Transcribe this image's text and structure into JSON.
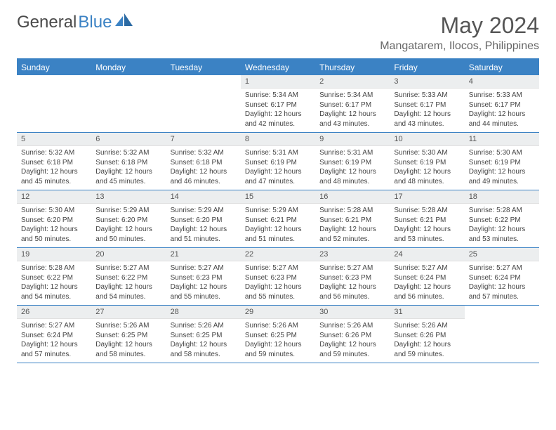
{
  "logo": {
    "text1": "General",
    "text2": "Blue"
  },
  "title": "May 2024",
  "location": "Mangatarem, Ilocos, Philippines",
  "dayNames": [
    "Sunday",
    "Monday",
    "Tuesday",
    "Wednesday",
    "Thursday",
    "Friday",
    "Saturday"
  ],
  "colors": {
    "headerBlue": "#3b82c4",
    "cellHeader": "#eceeef",
    "textGray": "#555"
  },
  "weeks": [
    [
      {
        "n": "",
        "lines": []
      },
      {
        "n": "",
        "lines": []
      },
      {
        "n": "",
        "lines": []
      },
      {
        "n": "1",
        "lines": [
          "Sunrise: 5:34 AM",
          "Sunset: 6:17 PM",
          "Daylight: 12 hours",
          "and 42 minutes."
        ]
      },
      {
        "n": "2",
        "lines": [
          "Sunrise: 5:34 AM",
          "Sunset: 6:17 PM",
          "Daylight: 12 hours",
          "and 43 minutes."
        ]
      },
      {
        "n": "3",
        "lines": [
          "Sunrise: 5:33 AM",
          "Sunset: 6:17 PM",
          "Daylight: 12 hours",
          "and 43 minutes."
        ]
      },
      {
        "n": "4",
        "lines": [
          "Sunrise: 5:33 AM",
          "Sunset: 6:17 PM",
          "Daylight: 12 hours",
          "and 44 minutes."
        ]
      }
    ],
    [
      {
        "n": "5",
        "lines": [
          "Sunrise: 5:32 AM",
          "Sunset: 6:18 PM",
          "Daylight: 12 hours",
          "and 45 minutes."
        ]
      },
      {
        "n": "6",
        "lines": [
          "Sunrise: 5:32 AM",
          "Sunset: 6:18 PM",
          "Daylight: 12 hours",
          "and 45 minutes."
        ]
      },
      {
        "n": "7",
        "lines": [
          "Sunrise: 5:32 AM",
          "Sunset: 6:18 PM",
          "Daylight: 12 hours",
          "and 46 minutes."
        ]
      },
      {
        "n": "8",
        "lines": [
          "Sunrise: 5:31 AM",
          "Sunset: 6:19 PM",
          "Daylight: 12 hours",
          "and 47 minutes."
        ]
      },
      {
        "n": "9",
        "lines": [
          "Sunrise: 5:31 AM",
          "Sunset: 6:19 PM",
          "Daylight: 12 hours",
          "and 48 minutes."
        ]
      },
      {
        "n": "10",
        "lines": [
          "Sunrise: 5:30 AM",
          "Sunset: 6:19 PM",
          "Daylight: 12 hours",
          "and 48 minutes."
        ]
      },
      {
        "n": "11",
        "lines": [
          "Sunrise: 5:30 AM",
          "Sunset: 6:19 PM",
          "Daylight: 12 hours",
          "and 49 minutes."
        ]
      }
    ],
    [
      {
        "n": "12",
        "lines": [
          "Sunrise: 5:30 AM",
          "Sunset: 6:20 PM",
          "Daylight: 12 hours",
          "and 50 minutes."
        ]
      },
      {
        "n": "13",
        "lines": [
          "Sunrise: 5:29 AM",
          "Sunset: 6:20 PM",
          "Daylight: 12 hours",
          "and 50 minutes."
        ]
      },
      {
        "n": "14",
        "lines": [
          "Sunrise: 5:29 AM",
          "Sunset: 6:20 PM",
          "Daylight: 12 hours",
          "and 51 minutes."
        ]
      },
      {
        "n": "15",
        "lines": [
          "Sunrise: 5:29 AM",
          "Sunset: 6:21 PM",
          "Daylight: 12 hours",
          "and 51 minutes."
        ]
      },
      {
        "n": "16",
        "lines": [
          "Sunrise: 5:28 AM",
          "Sunset: 6:21 PM",
          "Daylight: 12 hours",
          "and 52 minutes."
        ]
      },
      {
        "n": "17",
        "lines": [
          "Sunrise: 5:28 AM",
          "Sunset: 6:21 PM",
          "Daylight: 12 hours",
          "and 53 minutes."
        ]
      },
      {
        "n": "18",
        "lines": [
          "Sunrise: 5:28 AM",
          "Sunset: 6:22 PM",
          "Daylight: 12 hours",
          "and 53 minutes."
        ]
      }
    ],
    [
      {
        "n": "19",
        "lines": [
          "Sunrise: 5:28 AM",
          "Sunset: 6:22 PM",
          "Daylight: 12 hours",
          "and 54 minutes."
        ]
      },
      {
        "n": "20",
        "lines": [
          "Sunrise: 5:27 AM",
          "Sunset: 6:22 PM",
          "Daylight: 12 hours",
          "and 54 minutes."
        ]
      },
      {
        "n": "21",
        "lines": [
          "Sunrise: 5:27 AM",
          "Sunset: 6:23 PM",
          "Daylight: 12 hours",
          "and 55 minutes."
        ]
      },
      {
        "n": "22",
        "lines": [
          "Sunrise: 5:27 AM",
          "Sunset: 6:23 PM",
          "Daylight: 12 hours",
          "and 55 minutes."
        ]
      },
      {
        "n": "23",
        "lines": [
          "Sunrise: 5:27 AM",
          "Sunset: 6:23 PM",
          "Daylight: 12 hours",
          "and 56 minutes."
        ]
      },
      {
        "n": "24",
        "lines": [
          "Sunrise: 5:27 AM",
          "Sunset: 6:24 PM",
          "Daylight: 12 hours",
          "and 56 minutes."
        ]
      },
      {
        "n": "25",
        "lines": [
          "Sunrise: 5:27 AM",
          "Sunset: 6:24 PM",
          "Daylight: 12 hours",
          "and 57 minutes."
        ]
      }
    ],
    [
      {
        "n": "26",
        "lines": [
          "Sunrise: 5:27 AM",
          "Sunset: 6:24 PM",
          "Daylight: 12 hours",
          "and 57 minutes."
        ]
      },
      {
        "n": "27",
        "lines": [
          "Sunrise: 5:26 AM",
          "Sunset: 6:25 PM",
          "Daylight: 12 hours",
          "and 58 minutes."
        ]
      },
      {
        "n": "28",
        "lines": [
          "Sunrise: 5:26 AM",
          "Sunset: 6:25 PM",
          "Daylight: 12 hours",
          "and 58 minutes."
        ]
      },
      {
        "n": "29",
        "lines": [
          "Sunrise: 5:26 AM",
          "Sunset: 6:25 PM",
          "Daylight: 12 hours",
          "and 59 minutes."
        ]
      },
      {
        "n": "30",
        "lines": [
          "Sunrise: 5:26 AM",
          "Sunset: 6:26 PM",
          "Daylight: 12 hours",
          "and 59 minutes."
        ]
      },
      {
        "n": "31",
        "lines": [
          "Sunrise: 5:26 AM",
          "Sunset: 6:26 PM",
          "Daylight: 12 hours",
          "and 59 minutes."
        ]
      },
      {
        "n": "",
        "lines": []
      }
    ]
  ]
}
